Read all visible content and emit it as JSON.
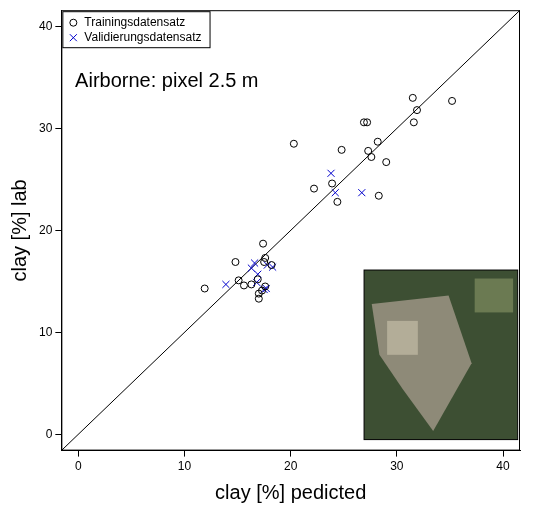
{
  "chart_data": {
    "type": "scatter",
    "annotation": "Airborne: pixel 2.5 m",
    "x_label": "clay [%] pedicted",
    "y_label": "clay [%] lab",
    "xlim": [
      -1.6,
      41.6
    ],
    "xticks": [
      0,
      10,
      20,
      30,
      40
    ],
    "ylim": [
      -1.6,
      41.6
    ],
    "yticks": [
      0,
      10,
      20,
      30,
      40
    ],
    "grid": false,
    "legend": "top-left",
    "series": [
      {
        "name": "Trainingsdatensatz",
        "color": "#000000",
        "marker": "circle",
        "x": [
          11.9,
          14.8,
          15.1,
          15.6,
          16.3,
          16.9,
          17.0,
          17.0,
          17.3,
          17.6,
          17.5,
          17.6,
          17.4,
          18.2,
          20.3,
          22.2,
          23.9,
          24.4,
          24.8,
          26.9,
          27.2,
          27.3,
          27.6,
          28.2,
          28.3,
          29.0,
          31.5,
          31.9,
          31.6,
          35.2
        ],
        "values": [
          14.3,
          16.9,
          15.1,
          14.6,
          14.7,
          15.2,
          13.8,
          13.3,
          14.1,
          14.5,
          16.9,
          17.3,
          18.7,
          16.6,
          28.5,
          24.1,
          24.6,
          22.8,
          27.9,
          30.6,
          30.6,
          27.8,
          27.2,
          28.7,
          23.4,
          26.7,
          33.0,
          31.8,
          30.6,
          32.7
        ]
      },
      {
        "name": "Validierungsdatensatz",
        "color": "#0000cc",
        "marker": "x",
        "x": [
          13.9,
          16.3,
          16.6,
          16.9,
          16.8,
          17.5,
          17.7,
          17.8,
          18.3,
          23.8,
          24.2,
          26.7
        ],
        "values": [
          14.7,
          16.3,
          16.8,
          15.7,
          14.9,
          14.2,
          14.3,
          16.6,
          16.4,
          25.6,
          23.7,
          23.7
        ]
      },
      {
        "type": "line",
        "color": "#000000",
        "line_style": "solid",
        "x": [
          -1.6,
          41.6
        ],
        "values": [
          -1.6,
          41.6
        ]
      }
    ]
  }
}
